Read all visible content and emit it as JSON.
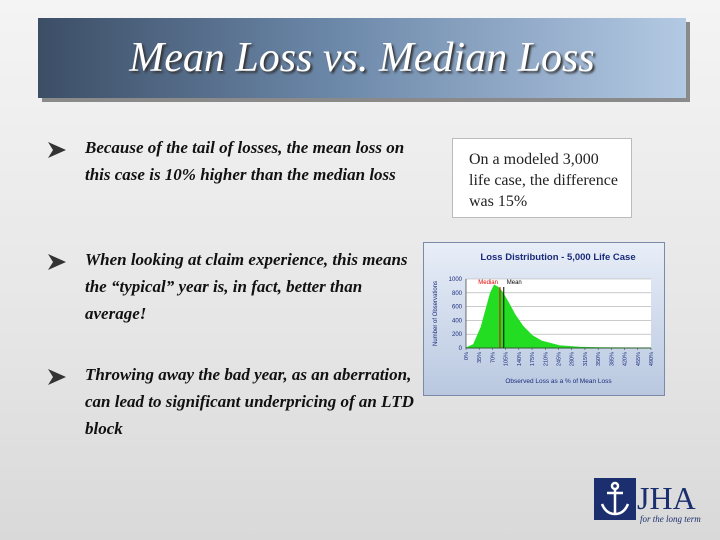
{
  "title": "Mean Loss vs. Median Loss",
  "bullets": [
    "Because of the tail of losses, the mean loss on this case is 10% higher than the median loss",
    "When looking at claim experience, this means the “typical” year is, in fact, better than average!",
    "Throwing away the bad year, as an aberration, can lead to significant underpricing of an LTD block"
  ],
  "callout": "On a modeled 3,000 life case, the difference was 15%",
  "chart": {
    "type": "area",
    "title": "Loss Distribution - 5,000 Life Case",
    "y_label": "Number of Observations",
    "x_label": "Observed Loss as a % of Mean Loss",
    "x": [
      0,
      20,
      40,
      55,
      65,
      75,
      85,
      95,
      110,
      130,
      150,
      175,
      200,
      250,
      300,
      350,
      400,
      490
    ],
    "series": [
      {
        "color": "#22dd22",
        "values": [
          0,
          50,
          300,
          600,
          800,
          910,
          880,
          820,
          680,
          480,
          320,
          180,
          100,
          30,
          10,
          3,
          1,
          0
        ]
      }
    ],
    "xlim": [
      0,
      490
    ],
    "xticks": [
      {
        "value": 0,
        "label": "0%"
      },
      {
        "value": 35,
        "label": "35%"
      },
      {
        "value": 70,
        "label": "70%"
      },
      {
        "value": 105,
        "label": "105%"
      },
      {
        "value": 140,
        "label": "140%"
      },
      {
        "value": 175,
        "label": "175%"
      },
      {
        "value": 210,
        "label": "210%"
      },
      {
        "value": 245,
        "label": "245%"
      },
      {
        "value": 280,
        "label": "280%"
      },
      {
        "value": 315,
        "label": "315%"
      },
      {
        "value": 350,
        "label": "350%"
      },
      {
        "value": 385,
        "label": "385%"
      },
      {
        "value": 420,
        "label": "420%"
      },
      {
        "value": 455,
        "label": "455%"
      },
      {
        "value": 490,
        "label": "490%"
      }
    ],
    "ylim": [
      0,
      1000
    ],
    "yticks": [
      0,
      200,
      400,
      600,
      800,
      1000
    ],
    "grid": true,
    "markers": [
      {
        "label": "Median",
        "x": 90,
        "color": "#e00000"
      },
      {
        "label": "Mean",
        "x": 100,
        "color": "#000000"
      }
    ]
  },
  "logo": {
    "name": "JHA",
    "tagline": "for the long term"
  }
}
